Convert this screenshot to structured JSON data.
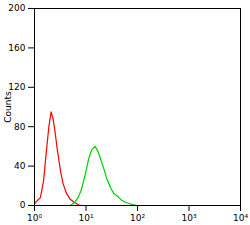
{
  "chart_data": {
    "type": "line",
    "ylabel": "Counts",
    "log": "x",
    "xlim": [
      1,
      10000
    ],
    "xticks": [
      {
        "value": 1,
        "label": "10⁰"
      },
      {
        "value": 10,
        "label": "10¹"
      },
      {
        "value": 100,
        "label": "10²"
      },
      {
        "value": 1000,
        "label": "10³"
      },
      {
        "value": 10000,
        "label": "10⁴"
      }
    ],
    "ylim": [
      0,
      200
    ],
    "yticks": [
      0,
      40,
      80,
      120,
      160,
      200
    ],
    "series": [
      {
        "color": "#ff0000",
        "x": [
          1.0,
          1.3,
          1.5,
          1.7,
          1.9,
          2.1,
          2.3,
          2.5,
          2.8,
          3.2,
          3.6,
          4.2,
          5,
          6,
          7,
          8
        ],
        "values": [
          2,
          8,
          25,
          55,
          80,
          95,
          88,
          75,
          55,
          35,
          22,
          12,
          6,
          3,
          1,
          0
        ]
      },
      {
        "color": "#00cc00",
        "x": [
          5,
          6,
          7,
          8,
          9,
          10,
          11,
          12,
          13,
          15,
          17,
          19,
          22,
          25,
          30,
          35,
          40,
          50,
          60,
          80,
          100
        ],
        "values": [
          0,
          3,
          8,
          15,
          25,
          35,
          45,
          52,
          57,
          60,
          55,
          48,
          38,
          28,
          18,
          12,
          10,
          5,
          3,
          1,
          0
        ]
      }
    ]
  }
}
